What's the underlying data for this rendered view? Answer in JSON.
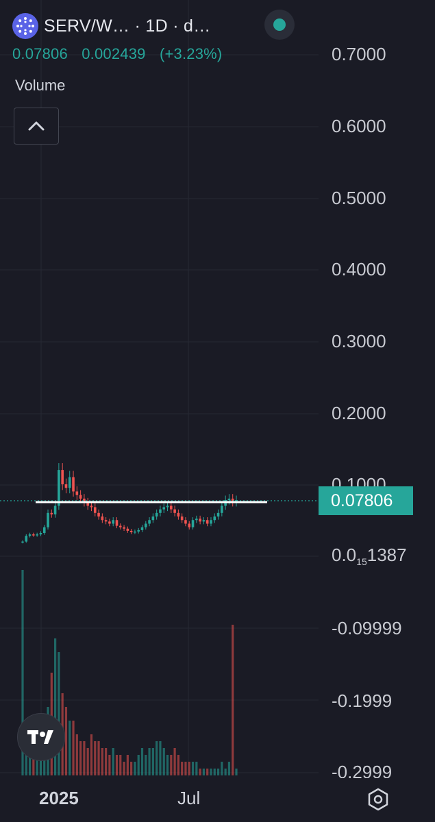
{
  "header": {
    "symbol": "SERV/W… · 1D · d…",
    "logo_icon": "serv-logo-icon",
    "live_icon": "live-status-dot"
  },
  "quote": {
    "last": "0.07806",
    "change": "0.002439",
    "change_pct": "(+3.23%)"
  },
  "indicators": {
    "volume_label": "Volume",
    "collapse_icon": "chevron-up-icon"
  },
  "price_axis": {
    "labels": [
      "0.7000",
      "0.6000",
      "0.5000",
      "0.4000",
      "0.3000",
      "0.2000",
      "0.1000",
      "-0.09999",
      "-0.1999",
      "-0.2999"
    ],
    "current_price": "0.07806",
    "low_label_prefix": "0.0",
    "low_label_sub": "15",
    "low_label_suffix": "1387"
  },
  "time_axis": {
    "labels": [
      "2025",
      "Jul"
    ]
  },
  "colors": {
    "background": "#1a1b25",
    "up": "#26a69a",
    "down": "#ef5350",
    "line": "#ffffff"
  },
  "chart_data": {
    "type": "candlestick",
    "interval": "1D",
    "horizontal_line": 0.078,
    "ylim": [
      -0.2999,
      0.7
    ],
    "x_labels": [
      "2025",
      "Jul"
    ],
    "close_series": [
      0.02,
      0.028,
      0.03,
      0.029,
      0.03,
      0.032,
      0.04,
      0.06,
      0.058,
      0.07,
      0.12,
      0.1,
      0.095,
      0.11,
      0.09,
      0.085,
      0.08,
      0.075,
      0.07,
      0.068,
      0.06,
      0.055,
      0.05,
      0.048,
      0.045,
      0.05,
      0.042,
      0.04,
      0.038,
      0.035,
      0.033,
      0.034,
      0.036,
      0.04,
      0.045,
      0.05,
      0.055,
      0.06,
      0.065,
      0.068,
      0.07,
      0.065,
      0.06,
      0.055,
      0.05,
      0.045,
      0.04,
      0.05,
      0.052,
      0.048,
      0.05,
      0.045,
      0.05,
      0.055,
      0.06,
      0.07,
      0.078,
      0.08,
      0.075,
      0.078
    ],
    "volume_series": [
      0.3,
      0.05,
      0.04,
      0.05,
      0.06,
      0.05,
      0.08,
      0.1,
      0.15,
      0.2,
      0.18,
      0.12,
      0.1,
      0.08,
      0.08,
      0.06,
      0.05,
      0.05,
      0.04,
      0.06,
      0.05,
      0.05,
      0.04,
      0.04,
      0.03,
      0.04,
      0.03,
      0.03,
      0.02,
      0.03,
      0.02,
      0.02,
      0.03,
      0.04,
      0.03,
      0.04,
      0.04,
      0.05,
      0.05,
      0.04,
      0.03,
      0.03,
      0.04,
      0.03,
      0.02,
      0.02,
      0.02,
      0.02,
      0.02,
      0.01,
      0.01,
      0.01,
      0.01,
      0.01,
      0.01,
      0.02,
      0.01,
      0.02,
      0.22,
      0.01
    ]
  }
}
